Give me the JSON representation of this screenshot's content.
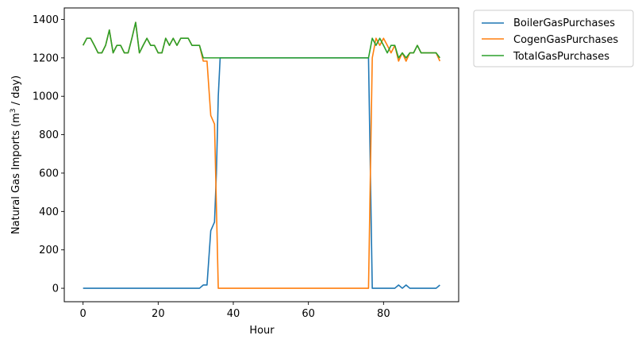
{
  "chart_data": {
    "type": "line",
    "xlabel": "Hour",
    "ylabel_prefix": "Natural Gas Imports (m",
    "ylabel_sup": "3",
    "ylabel_suffix": " / day)",
    "xlim": [
      -5,
      100
    ],
    "ylim": [
      -70,
      1460
    ],
    "xticks": [
      0,
      20,
      40,
      60,
      80
    ],
    "yticks": [
      0,
      200,
      400,
      600,
      800,
      1000,
      1200,
      1400
    ],
    "grid": false,
    "legend_position": "outside-top-right",
    "series": [
      {
        "name": "BoilerGasPurchases",
        "color": "#1f77b4",
        "points": [
          [
            0,
            0
          ],
          [
            31,
            0
          ],
          [
            32,
            17
          ],
          [
            33,
            17
          ],
          [
            34,
            300
          ],
          [
            35,
            345
          ],
          [
            35.5,
            600
          ],
          [
            36,
            1000
          ],
          [
            36.5,
            1200
          ],
          [
            76,
            1200
          ],
          [
            77,
            0
          ],
          [
            83,
            0
          ],
          [
            84,
            17
          ],
          [
            85,
            0
          ],
          [
            86,
            17
          ],
          [
            87,
            0
          ],
          [
            94,
            0
          ],
          [
            95,
            17
          ]
        ]
      },
      {
        "name": "CogenGasPurchases",
        "color": "#ff7f0e",
        "points": [
          [
            0,
            1265
          ],
          [
            1,
            1302
          ],
          [
            2,
            1302
          ],
          [
            3,
            1265
          ],
          [
            4,
            1226
          ],
          [
            5,
            1226
          ],
          [
            6,
            1265
          ],
          [
            7,
            1345
          ],
          [
            8,
            1226
          ],
          [
            9,
            1265
          ],
          [
            10,
            1265
          ],
          [
            11,
            1226
          ],
          [
            12,
            1226
          ],
          [
            13,
            1302
          ],
          [
            14,
            1385
          ],
          [
            15,
            1226
          ],
          [
            16,
            1265
          ],
          [
            17,
            1302
          ],
          [
            18,
            1265
          ],
          [
            19,
            1265
          ],
          [
            20,
            1226
          ],
          [
            21,
            1226
          ],
          [
            22,
            1302
          ],
          [
            23,
            1265
          ],
          [
            24,
            1302
          ],
          [
            25,
            1265
          ],
          [
            26,
            1302
          ],
          [
            27,
            1302
          ],
          [
            28,
            1302
          ],
          [
            29,
            1265
          ],
          [
            30,
            1265
          ],
          [
            31,
            1265
          ],
          [
            32,
            1183
          ],
          [
            33,
            1183
          ],
          [
            34,
            900
          ],
          [
            35,
            855
          ],
          [
            36,
            0
          ],
          [
            76,
            0
          ],
          [
            77,
            1200
          ],
          [
            78,
            1302
          ],
          [
            79,
            1265
          ],
          [
            80,
            1302
          ],
          [
            81,
            1265
          ],
          [
            82,
            1226
          ],
          [
            83,
            1265
          ],
          [
            84,
            1183
          ],
          [
            85,
            1226
          ],
          [
            86,
            1183
          ],
          [
            87,
            1226
          ],
          [
            88,
            1226
          ],
          [
            89,
            1265
          ],
          [
            90,
            1226
          ],
          [
            91,
            1226
          ],
          [
            92,
            1226
          ],
          [
            93,
            1226
          ],
          [
            94,
            1226
          ],
          [
            95,
            1183
          ]
        ]
      },
      {
        "name": "TotalGasPurchases",
        "color": "#2ca02c",
        "points": [
          [
            0,
            1265
          ],
          [
            1,
            1302
          ],
          [
            2,
            1302
          ],
          [
            3,
            1265
          ],
          [
            4,
            1226
          ],
          [
            5,
            1226
          ],
          [
            6,
            1265
          ],
          [
            7,
            1345
          ],
          [
            8,
            1226
          ],
          [
            9,
            1265
          ],
          [
            10,
            1265
          ],
          [
            11,
            1226
          ],
          [
            12,
            1226
          ],
          [
            13,
            1302
          ],
          [
            14,
            1385
          ],
          [
            15,
            1226
          ],
          [
            16,
            1265
          ],
          [
            17,
            1302
          ],
          [
            18,
            1265
          ],
          [
            19,
            1265
          ],
          [
            20,
            1226
          ],
          [
            21,
            1226
          ],
          [
            22,
            1302
          ],
          [
            23,
            1265
          ],
          [
            24,
            1302
          ],
          [
            25,
            1265
          ],
          [
            26,
            1302
          ],
          [
            27,
            1302
          ],
          [
            28,
            1302
          ],
          [
            29,
            1265
          ],
          [
            30,
            1265
          ],
          [
            31,
            1265
          ],
          [
            32,
            1200
          ],
          [
            76,
            1200
          ],
          [
            77,
            1302
          ],
          [
            78,
            1265
          ],
          [
            79,
            1302
          ],
          [
            80,
            1265
          ],
          [
            81,
            1226
          ],
          [
            82,
            1265
          ],
          [
            83,
            1265
          ],
          [
            84,
            1200
          ],
          [
            85,
            1226
          ],
          [
            86,
            1200
          ],
          [
            87,
            1226
          ],
          [
            88,
            1226
          ],
          [
            89,
            1265
          ],
          [
            90,
            1226
          ],
          [
            91,
            1226
          ],
          [
            92,
            1226
          ],
          [
            93,
            1226
          ],
          [
            94,
            1226
          ],
          [
            95,
            1200
          ]
        ]
      }
    ]
  }
}
